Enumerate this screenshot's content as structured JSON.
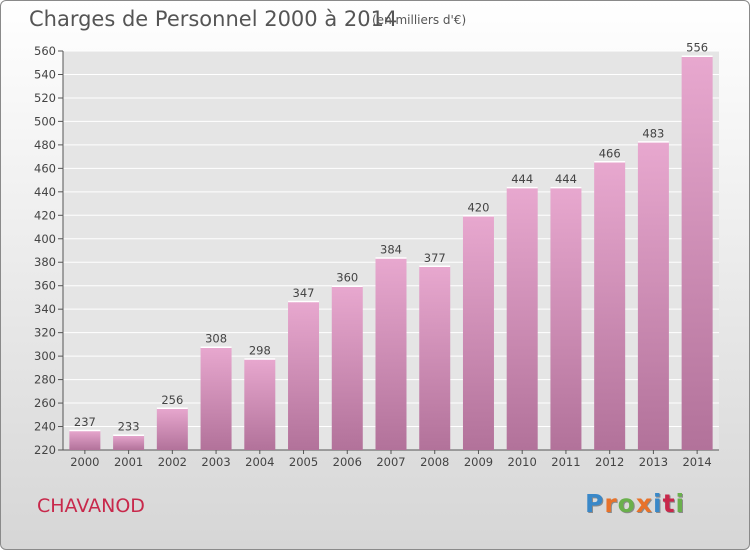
{
  "header": {
    "title": "Charges de Personnel 2000 à 2014",
    "subtitle": "(en milliers d'€)"
  },
  "footer": {
    "city": "CHAVANOD",
    "logo_text": "Proxiti",
    "logo_colors": [
      "#3a88c8",
      "#e8722a",
      "#6ab04c",
      "#e8722a",
      "#3a88c8",
      "#c8284b",
      "#6ab04c"
    ]
  },
  "chart_data": {
    "type": "bar",
    "title": "Charges de Personnel 2000 à 2014",
    "subtitle": "(en milliers d'€)",
    "categories": [
      "2000",
      "2001",
      "2002",
      "2003",
      "2004",
      "2005",
      "2006",
      "2007",
      "2008",
      "2009",
      "2010",
      "2011",
      "2012",
      "2013",
      "2014"
    ],
    "values": [
      237,
      233,
      256,
      308,
      298,
      347,
      360,
      384,
      377,
      420,
      444,
      444,
      466,
      483,
      556
    ],
    "xlabel": "",
    "ylabel": "",
    "ylim": [
      220,
      560
    ],
    "ytick_step": 20,
    "grid": true,
    "bar_color_top": "#e8a8cf",
    "bar_color_bottom": "#b2729a"
  }
}
